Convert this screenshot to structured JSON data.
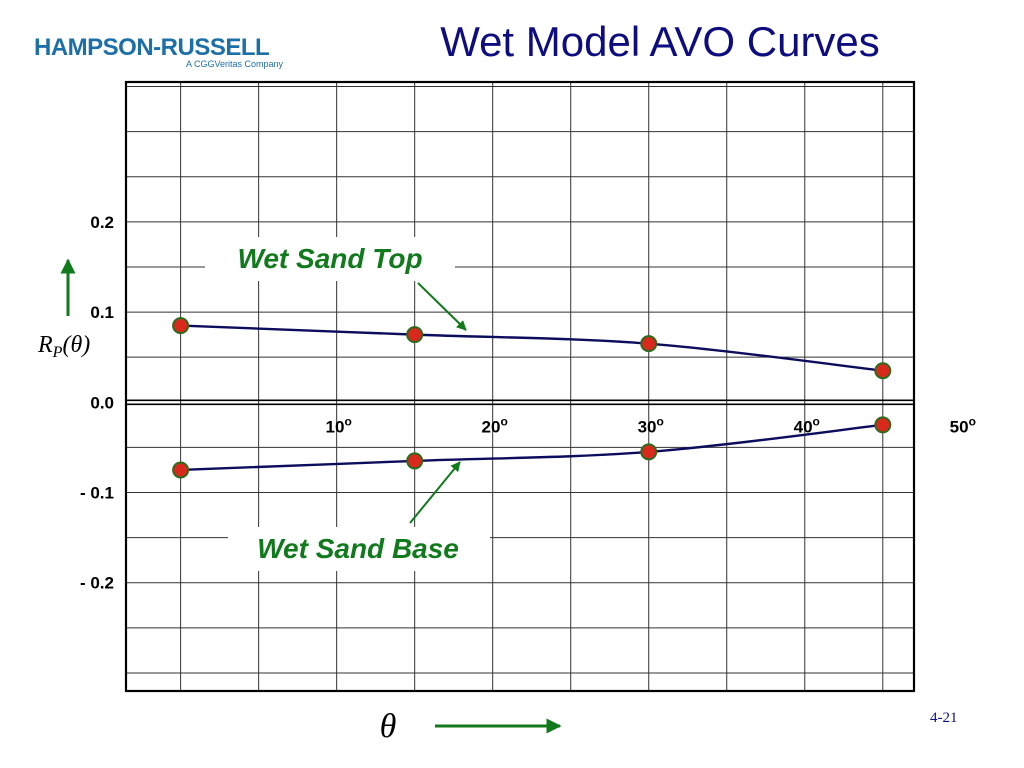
{
  "header": {
    "logo_text": "HAMPSON-RUSSELL",
    "logo_subtext": "A CGGVeritas Company",
    "title": "Wet Model AVO Curves"
  },
  "footer": {
    "page_number": "4-21"
  },
  "colors": {
    "curve": "#0d0d5e",
    "marker_fill": "#d9291c",
    "marker_edge": "#2d6b1e",
    "label_green": "#117a1d",
    "title_blue": "#0d0d80",
    "logo_blue": "#1d6fa8"
  },
  "chart_data": {
    "type": "line",
    "title": "Wet Model AVO Curves",
    "xlabel": "θ",
    "ylabel": "R_P(θ)",
    "xlim": [
      -3.5,
      47
    ],
    "ylim": [
      -0.32,
      0.355
    ],
    "grid": true,
    "x_ticks": [
      {
        "value": 10,
        "label": "10"
      },
      {
        "value": 20,
        "label": "20"
      },
      {
        "value": 30,
        "label": "30"
      },
      {
        "value": 40,
        "label": "40"
      },
      {
        "value": 50,
        "label": "50"
      }
    ],
    "x_tick_suffix": "o",
    "y_ticks": [
      {
        "value": 0.2,
        "label": "0.2"
      },
      {
        "value": 0.1,
        "label": "0.1"
      },
      {
        "value": 0.0,
        "label": "0.0"
      },
      {
        "value": -0.1,
        "label": "- 0.1"
      },
      {
        "value": -0.2,
        "label": "- 0.2"
      }
    ],
    "series": [
      {
        "name": "Wet Sand Top",
        "x": [
          0,
          15,
          30,
          45
        ],
        "y": [
          0.085,
          0.075,
          0.065,
          0.035
        ]
      },
      {
        "name": "Wet Sand Base",
        "x": [
          0,
          15,
          30,
          45
        ],
        "y": [
          -0.075,
          -0.065,
          -0.055,
          -0.025
        ]
      }
    ]
  }
}
